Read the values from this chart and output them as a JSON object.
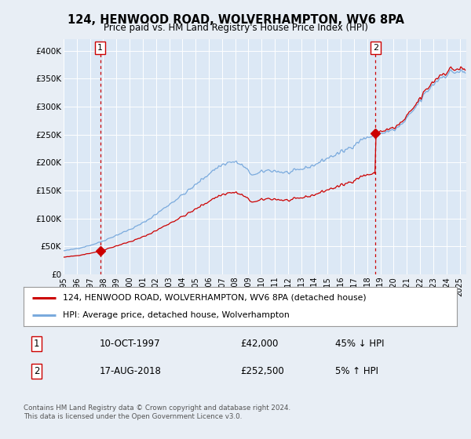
{
  "title": "124, HENWOOD ROAD, WOLVERHAMPTON, WV6 8PA",
  "subtitle": "Price paid vs. HM Land Registry's House Price Index (HPI)",
  "legend_line1": "124, HENWOOD ROAD, WOLVERHAMPTON, WV6 8PA (detached house)",
  "legend_line2": "HPI: Average price, detached house, Wolverhampton",
  "footnote": "Contains HM Land Registry data © Crown copyright and database right 2024.\nThis data is licensed under the Open Government Licence v3.0.",
  "sale1_date": "10-OCT-1997",
  "sale1_price_str": "£42,000",
  "sale1_hpi_str": "45% ↓ HPI",
  "sale2_date": "17-AUG-2018",
  "sale2_price_str": "£252,500",
  "sale2_hpi_str": "5% ↑ HPI",
  "hpi_color": "#7aaadd",
  "price_color": "#cc0000",
  "bg_color": "#e8eef5",
  "plot_bg": "#dce8f5",
  "grid_color": "#ffffff",
  "ylim": [
    0,
    420000
  ],
  "yticks": [
    0,
    50000,
    100000,
    150000,
    200000,
    250000,
    300000,
    350000,
    400000
  ],
  "ytick_labels": [
    "£0",
    "£50K",
    "£100K",
    "£150K",
    "£200K",
    "£250K",
    "£300K",
    "£350K",
    "£400K"
  ],
  "sale1_x": 1997.78,
  "sale1_y": 42000,
  "sale2_x": 2018.63,
  "sale2_y": 252500,
  "xlim_min": 1995.0,
  "xlim_max": 2025.5
}
